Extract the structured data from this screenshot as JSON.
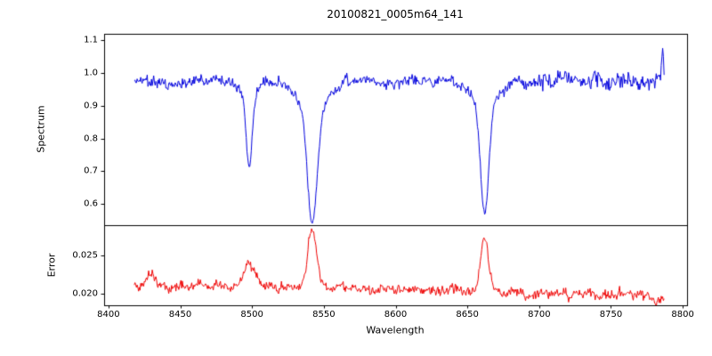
{
  "title": "20100821_0005m64_141",
  "axes": {
    "xlabel": "Wavelength",
    "spectrum_ylabel": "Spectrum",
    "error_ylabel": "Error",
    "x_ticks": {
      "values": [
        8400,
        8450,
        8500,
        8550,
        8600,
        8650,
        8700,
        8750,
        8800
      ],
      "labels": [
        "8400",
        "8450",
        "8500",
        "8550",
        "8600",
        "8650",
        "8700",
        "8750",
        "8800"
      ]
    },
    "spectrum_yticks": {
      "values": [
        1.1,
        1.0,
        0.9,
        0.8,
        0.7,
        0.6
      ],
      "labels": [
        "1.1",
        "1.0",
        "0.9",
        "0.8",
        "0.7",
        "0.6"
      ]
    },
    "error_yticks": {
      "values": [
        0.025,
        0.02
      ],
      "labels": [
        "0.025",
        "0.020"
      ]
    },
    "x_range": [
      8397,
      8803
    ],
    "spectrum_yrange": [
      0.535,
      1.12
    ],
    "error_yrange": [
      0.0185,
      0.029
    ]
  },
  "chart_data": {
    "type": "line",
    "title": "20100821_0005m64_141",
    "xlabel": "Wavelength",
    "panels": [
      {
        "name": "spectrum",
        "ylabel": "Spectrum",
        "ylim": [
          0.535,
          1.12
        ]
      },
      {
        "name": "error",
        "ylabel": "Error",
        "ylim": [
          0.0185,
          0.029
        ]
      }
    ],
    "noise_seed": 11,
    "series": [
      {
        "name": "spectrum",
        "panel": "spectrum",
        "color": "#0000dd",
        "x_start": 8418,
        "x_end": 8787,
        "x_step": 0.5,
        "continuum": 0.975,
        "noise_sigma": 0.007,
        "noise_walk": 0.018,
        "right_noise_boost_from": 8690,
        "right_noise_boost": 1.4,
        "absorption_lines": [
          {
            "center": 8498,
            "depth": 0.27,
            "sigma": 1.9
          },
          {
            "center": 8542,
            "depth": 0.44,
            "sigma": 3.4
          },
          {
            "center": 8662,
            "depth": 0.42,
            "sigma": 2.8
          }
        ],
        "edge_spike": {
          "x": 8786,
          "height": 0.1,
          "sigma": 0.6
        }
      },
      {
        "name": "error",
        "panel": "error",
        "color": "#ee0000",
        "x_start": 8418,
        "x_end": 8787,
        "x_step": 0.5,
        "baseline_start": 0.0213,
        "baseline_end": 0.0198,
        "end_dip_from": 8768,
        "end_dip_slope": 2.5e-05,
        "noise_sigma": 0.00025,
        "noise_walk": 0.0007,
        "peaks": [
          {
            "center": 8430,
            "amp": 0.0012,
            "sigma": 3.0
          },
          {
            "center": 8498,
            "amp": 0.003,
            "sigma": 3.5
          },
          {
            "center": 8542,
            "amp": 0.0075,
            "sigma": 3.0
          },
          {
            "center": 8662,
            "amp": 0.0072,
            "sigma": 2.8
          }
        ]
      }
    ]
  }
}
